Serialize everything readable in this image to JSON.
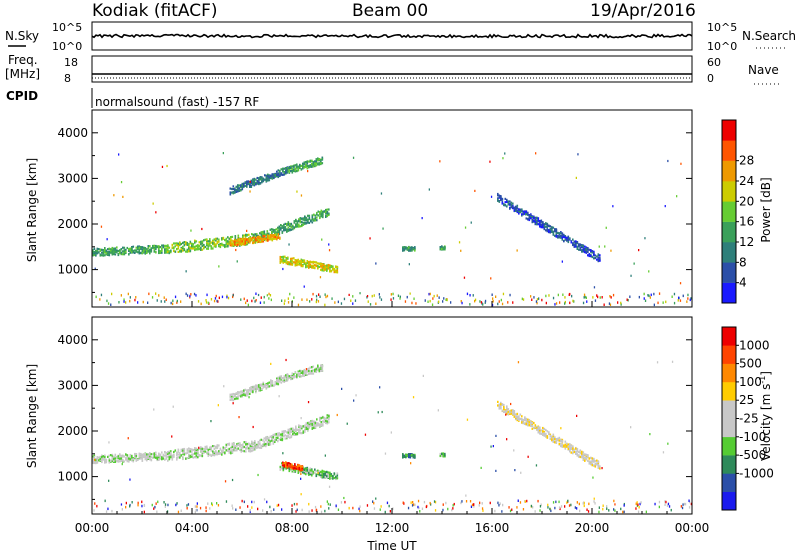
{
  "header": {
    "station": "Kodiak (fitACF)",
    "beam": "Beam 00",
    "date": "19/Apr/2016"
  },
  "summary": {
    "nsky_label": "N.Sky",
    "nsearch_label": "N.Search",
    "noise_ticks": [
      "10^5",
      "10^0"
    ],
    "freq_label_line1": "Freq.",
    "freq_label_line2": "[MHz]",
    "freq_ticks": [
      "18",
      "8"
    ],
    "nave_label": "Nave",
    "nave_ticks": [
      "60",
      "0"
    ],
    "cpid_label": "CPID",
    "cpid_value": "normalsound (fast) -157 RF"
  },
  "chart_data": [
    {
      "type": "heatmap",
      "parameter": "power",
      "ylabel": "Slant Range [km]",
      "ylim": [
        180,
        4500
      ],
      "yticks": [
        "1000",
        "2000",
        "3000",
        "4000"
      ],
      "xlim": [
        0,
        24
      ],
      "colorbar_label": "Power [dB]",
      "colorbar_ticks": [
        "4",
        "8",
        "12",
        "16",
        "20",
        "24",
        "28"
      ],
      "colors": [
        "#1a1aff",
        "#2b4fa8",
        "#2e7f7a",
        "#3aa05a",
        "#66cc33",
        "#cccc00",
        "#ee9900",
        "#ff5500",
        "#ee0000"
      ],
      "echo_regions": [
        {
          "t_start": 0.0,
          "t_end": 3.0,
          "r_start": 1400,
          "r_end": 1480,
          "r_width": 120,
          "level": 3
        },
        {
          "t_start": 3.0,
          "t_end": 6.5,
          "r_start": 1480,
          "r_end": 1700,
          "r_width": 160,
          "level": 4
        },
        {
          "t_start": 6.5,
          "t_end": 9.5,
          "r_start": 1700,
          "r_end": 2300,
          "r_width": 140,
          "level": 3
        },
        {
          "t_start": 5.5,
          "t_end": 7.5,
          "r_start": 1600,
          "r_end": 1750,
          "r_width": 90,
          "level": 6
        },
        {
          "t_start": 5.5,
          "t_end": 7.8,
          "r_start": 2750,
          "r_end": 3200,
          "r_width": 110,
          "level": 2
        },
        {
          "t_start": 7.8,
          "t_end": 9.2,
          "r_start": 3200,
          "r_end": 3420,
          "r_width": 110,
          "level": 3
        },
        {
          "t_start": 7.5,
          "t_end": 9.8,
          "r_start": 1250,
          "r_end": 1020,
          "r_width": 110,
          "level": 5
        },
        {
          "t_start": 16.2,
          "t_end": 20.3,
          "r_start": 2600,
          "r_end": 1250,
          "r_width": 120,
          "level": 1
        },
        {
          "t_start": 12.4,
          "t_end": 12.9,
          "r_start": 1480,
          "r_end": 1480,
          "r_width": 60,
          "level": 3
        },
        {
          "t_start": 13.9,
          "t_end": 14.1,
          "r_start": 1500,
          "r_end": 1500,
          "r_width": 50,
          "level": 3
        }
      ]
    },
    {
      "type": "heatmap",
      "parameter": "velocity",
      "xlabel": "Time UT",
      "ylabel": "Slant Range [km]",
      "ylim": [
        180,
        4500
      ],
      "yticks": [
        "1000",
        "2000",
        "3000",
        "4000"
      ],
      "xlim": [
        0,
        24
      ],
      "xticks": [
        "00:00",
        "04:00",
        "08:00",
        "12:00",
        "16:00",
        "20:00",
        "00:00"
      ],
      "colorbar_label": "Velocity [m s",
      "colorbar_label_sup": "-1",
      "colorbar_label_end": "]",
      "colorbar_ticks": [
        "1000",
        "500",
        "100",
        "25",
        "-25",
        "-100",
        "-500",
        "-1000"
      ],
      "colors": [
        "#1a1aee",
        "#2b4fa8",
        "#2e8a5a",
        "#55cc33",
        "#c8c8c8",
        "#c8c8c8",
        "#ffcc00",
        "#ff8800",
        "#ff4400",
        "#ee0000"
      ],
      "echo_regions": [
        {
          "t_start": 0.0,
          "t_end": 3.0,
          "r_start": 1400,
          "r_end": 1480,
          "r_width": 120,
          "level": 4
        },
        {
          "t_start": 3.0,
          "t_end": 6.5,
          "r_start": 1480,
          "r_end": 1700,
          "r_width": 160,
          "level": 4
        },
        {
          "t_start": 6.5,
          "t_end": 9.5,
          "r_start": 1700,
          "r_end": 2300,
          "r_width": 140,
          "level": 4
        },
        {
          "t_start": 5.5,
          "t_end": 7.8,
          "r_start": 2750,
          "r_end": 3200,
          "r_width": 110,
          "level": 4
        },
        {
          "t_start": 7.8,
          "t_end": 9.2,
          "r_start": 3200,
          "r_end": 3420,
          "r_width": 110,
          "level": 4
        },
        {
          "t_start": 7.5,
          "t_end": 9.8,
          "r_start": 1250,
          "r_end": 1020,
          "r_width": 110,
          "level": 3
        },
        {
          "t_start": 7.6,
          "t_end": 8.4,
          "r_start": 1300,
          "r_end": 1200,
          "r_width": 80,
          "level": 8
        },
        {
          "t_start": 16.2,
          "t_end": 20.3,
          "r_start": 2600,
          "r_end": 1250,
          "r_width": 120,
          "level": 5
        },
        {
          "t_start": 12.4,
          "t_end": 12.9,
          "r_start": 1480,
          "r_end": 1480,
          "r_width": 60,
          "level": 2
        },
        {
          "t_start": 13.9,
          "t_end": 14.1,
          "r_start": 1500,
          "r_end": 1500,
          "r_width": 50,
          "level": 3
        }
      ]
    }
  ]
}
